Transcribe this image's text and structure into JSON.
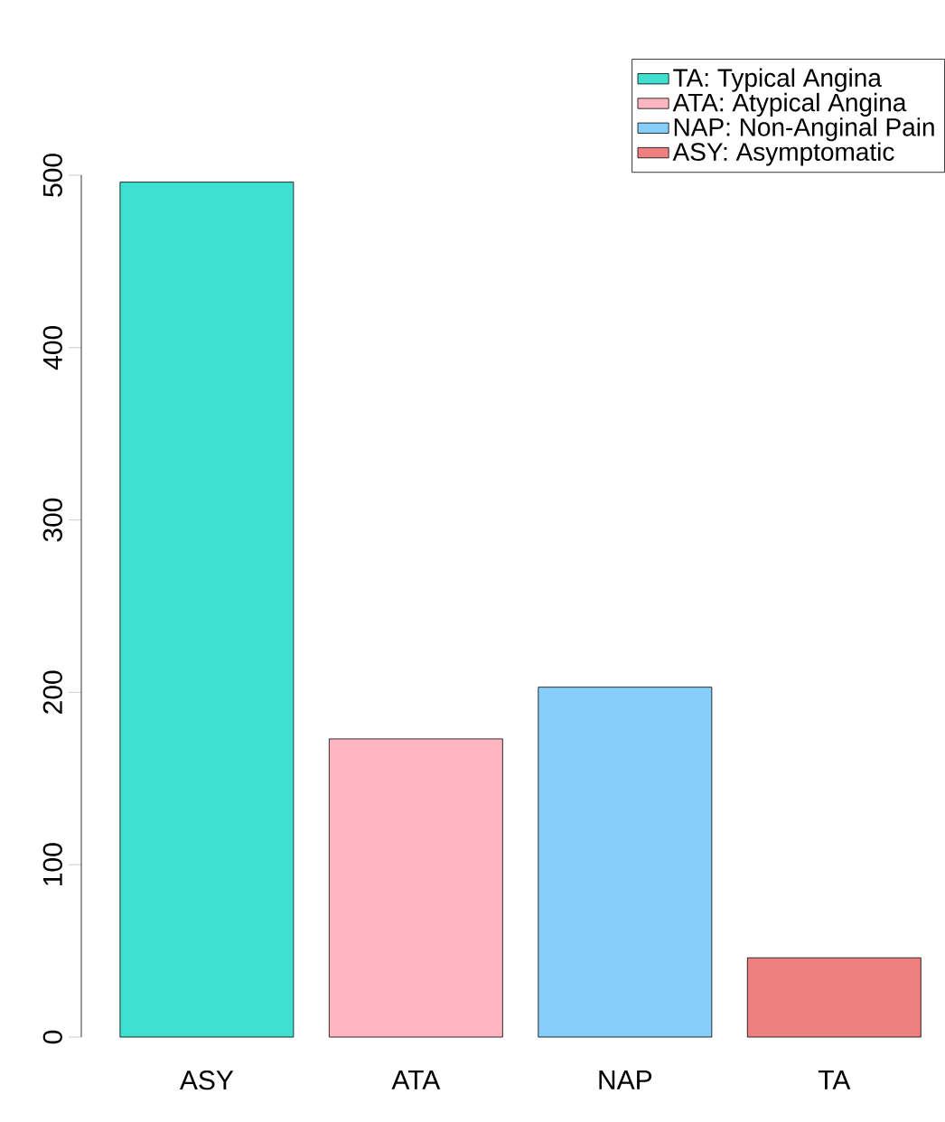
{
  "chart_data": {
    "type": "bar",
    "categories": [
      "ASY",
      "ATA",
      "NAP",
      "TA"
    ],
    "series": [
      {
        "name": "TA: Typical Angina",
        "color": "#40e0d0",
        "values": [
          496,
          null,
          null,
          null
        ]
      },
      {
        "name": "ATA: Atypical Angina",
        "color": "#ffb6c1",
        "values": [
          null,
          173,
          null,
          null
        ]
      },
      {
        "name": "NAP: Non-Anginal Pain",
        "color": "#87cefa",
        "values": [
          null,
          null,
          203,
          null
        ]
      },
      {
        "name": "ASY: Asymptomatic",
        "color": "#f08080",
        "values": [
          null,
          null,
          null,
          46
        ]
      }
    ],
    "ylim": [
      0,
      500
    ],
    "yticks": [
      0,
      100,
      200,
      300,
      400,
      500
    ],
    "legend": "top right"
  }
}
